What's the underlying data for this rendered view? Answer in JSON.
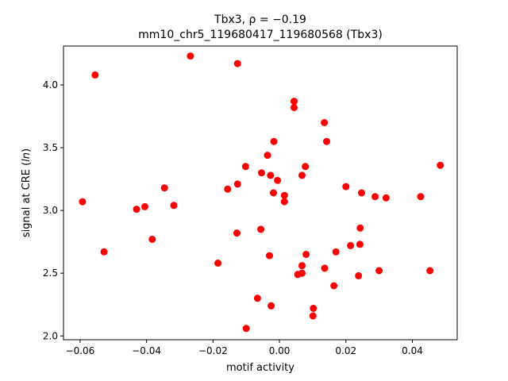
{
  "chart_data": {
    "type": "scatter",
    "title_line1": "Tbx3, ρ = −0.19",
    "title_line2": "mm10_chr5_119680417_119680568 (Tbx3)",
    "xlabel": "motif activity",
    "ylabel": "signal at CRE (ln)",
    "xlim": [
      -0.065,
      0.0535
    ],
    "ylim": [
      1.97,
      4.31
    ],
    "xticks": [
      -0.06,
      -0.04,
      -0.02,
      0.0,
      0.02,
      0.04
    ],
    "xtick_labels": [
      "−0.06",
      "−0.04",
      "−0.02",
      "0.00",
      "0.02",
      "0.04"
    ],
    "yticks": [
      2.0,
      2.5,
      3.0,
      3.5,
      4.0
    ],
    "ytick_labels": [
      "2.0",
      "2.5",
      "3.0",
      "3.5",
      "4.0"
    ],
    "grid": false,
    "marker_color": "#ff0000",
    "points": [
      {
        "x": -0.0555,
        "y": 4.08
      },
      {
        "x": -0.0268,
        "y": 4.23
      },
      {
        "x": -0.0126,
        "y": 4.17
      },
      {
        "x": 0.0044,
        "y": 3.87
      },
      {
        "x": 0.0044,
        "y": 3.82
      },
      {
        "x": 0.0135,
        "y": 3.7
      },
      {
        "x": 0.0142,
        "y": 3.55
      },
      {
        "x": -0.0017,
        "y": 3.55
      },
      {
        "x": -0.0036,
        "y": 3.44
      },
      {
        "x": 0.0484,
        "y": 3.36
      },
      {
        "x": -0.0102,
        "y": 3.35
      },
      {
        "x": 0.0078,
        "y": 3.35
      },
      {
        "x": -0.0054,
        "y": 3.3
      },
      {
        "x": 0.0068,
        "y": 3.28
      },
      {
        "x": -0.0027,
        "y": 3.28
      },
      {
        "x": -0.0006,
        "y": 3.24
      },
      {
        "x": -0.0126,
        "y": 3.21
      },
      {
        "x": 0.02,
        "y": 3.19
      },
      {
        "x": -0.0346,
        "y": 3.18
      },
      {
        "x": -0.0156,
        "y": 3.17
      },
      {
        "x": -0.0018,
        "y": 3.14
      },
      {
        "x": 0.0247,
        "y": 3.14
      },
      {
        "x": 0.0015,
        "y": 3.12
      },
      {
        "x": 0.0288,
        "y": 3.11
      },
      {
        "x": 0.0321,
        "y": 3.1
      },
      {
        "x": 0.0425,
        "y": 3.11
      },
      {
        "x": 0.0015,
        "y": 3.07
      },
      {
        "x": -0.0593,
        "y": 3.07
      },
      {
        "x": -0.0318,
        "y": 3.04
      },
      {
        "x": -0.0405,
        "y": 3.03
      },
      {
        "x": -0.043,
        "y": 3.01
      },
      {
        "x": 0.0243,
        "y": 2.86
      },
      {
        "x": -0.0056,
        "y": 2.85
      },
      {
        "x": -0.0128,
        "y": 2.82
      },
      {
        "x": -0.0383,
        "y": 2.77
      },
      {
        "x": 0.0242,
        "y": 2.73
      },
      {
        "x": 0.0214,
        "y": 2.72
      },
      {
        "x": -0.0528,
        "y": 2.67
      },
      {
        "x": 0.017,
        "y": 2.67
      },
      {
        "x": 0.008,
        "y": 2.65
      },
      {
        "x": -0.003,
        "y": 2.64
      },
      {
        "x": -0.0185,
        "y": 2.58
      },
      {
        "x": 0.0068,
        "y": 2.56
      },
      {
        "x": 0.0136,
        "y": 2.54
      },
      {
        "x": 0.03,
        "y": 2.52
      },
      {
        "x": 0.0453,
        "y": 2.52
      },
      {
        "x": 0.0068,
        "y": 2.5
      },
      {
        "x": 0.0055,
        "y": 2.49
      },
      {
        "x": 0.0238,
        "y": 2.48
      },
      {
        "x": 0.0164,
        "y": 2.4
      },
      {
        "x": -0.0066,
        "y": 2.3
      },
      {
        "x": -0.0025,
        "y": 2.24
      },
      {
        "x": 0.0102,
        "y": 2.22
      },
      {
        "x": 0.0101,
        "y": 2.16
      },
      {
        "x": -0.01,
        "y": 2.06
      }
    ]
  }
}
